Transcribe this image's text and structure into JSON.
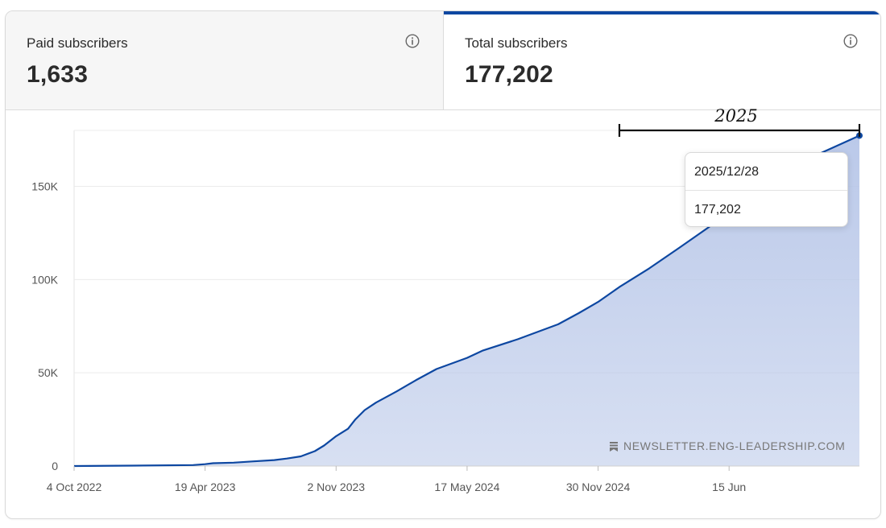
{
  "tabs": {
    "paid": {
      "label": "Paid subscribers",
      "value": "1,633"
    },
    "total": {
      "label": "Total subscribers",
      "value": "177,202"
    }
  },
  "tooltip": {
    "date": "2025/12/28",
    "value": "177,202"
  },
  "watermark": "NEWSLETTER.ENG-LEADERSHIP.COM",
  "annotation": {
    "label": "2025"
  },
  "colors": {
    "line": "#0d47a1",
    "fill": "#b7c6e8",
    "accent": "#0d47a1"
  },
  "chart_data": {
    "type": "area",
    "title": "",
    "xlabel": "",
    "ylabel": "",
    "ylim": [
      0,
      180000
    ],
    "yticks": [
      0,
      50000,
      100000,
      150000
    ],
    "ytick_labels": [
      "0",
      "50K",
      "100K",
      "150K"
    ],
    "xlim": [
      "2022-10-04",
      "2025-12-28"
    ],
    "xticks": [
      "2022-10-04",
      "2023-04-19",
      "2023-11-02",
      "2024-05-17",
      "2024-11-30",
      "2025-06-15"
    ],
    "xtick_labels": [
      "4 Oct 2022",
      "19 Apr 2023",
      "2 Nov 2023",
      "17 May 2024",
      "30 Nov 2024",
      "15 Jun"
    ],
    "grid": true,
    "series": [
      {
        "x": [
          "2022-10-04",
          "2023-01-01",
          "2023-04-01",
          "2023-04-19",
          "2023-05-01",
          "2023-06-01",
          "2023-07-01",
          "2023-08-01",
          "2023-08-20",
          "2023-09-10",
          "2023-10-01",
          "2023-10-15",
          "2023-11-02",
          "2023-11-20",
          "2023-12-01",
          "2023-12-15",
          "2024-01-01",
          "2024-02-01",
          "2024-03-01",
          "2024-04-01",
          "2024-05-17",
          "2024-06-10",
          "2024-08-01",
          "2024-10-01",
          "2024-11-01",
          "2024-11-30",
          "2025-01-01",
          "2025-02-15",
          "2025-04-01",
          "2025-05-15",
          "2025-06-15",
          "2025-08-01",
          "2025-10-01",
          "2025-12-28"
        ],
        "y": [
          0,
          200,
          500,
          1000,
          1500,
          1800,
          2500,
          3200,
          4000,
          5200,
          8000,
          11000,
          16000,
          20000,
          25000,
          30000,
          34000,
          40000,
          46000,
          52000,
          58000,
          62000,
          68000,
          76000,
          82000,
          88000,
          96000,
          106000,
          117000,
          128000,
          137000,
          150000,
          163000,
          177202
        ]
      }
    ],
    "annotations": [
      {
        "text": "2025",
        "x_start": "2025-01-01",
        "x_end": "2025-12-28",
        "y": 174000
      }
    ]
  }
}
